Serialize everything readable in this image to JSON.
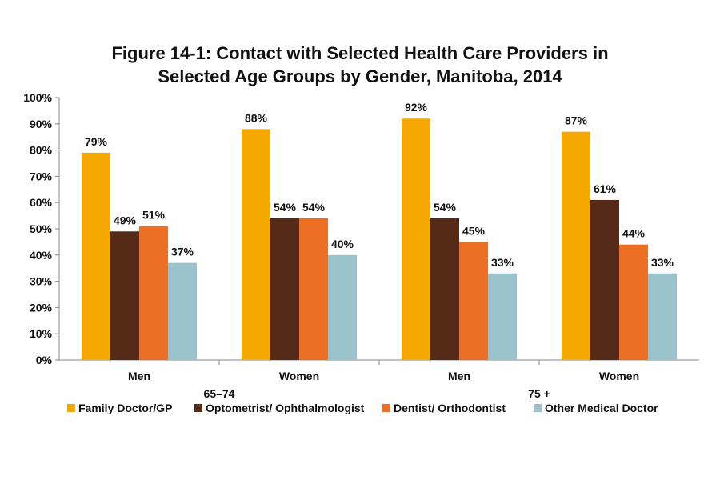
{
  "chart_data": {
    "type": "bar",
    "title": "Figure 14-1: Contact with Selected Health Care Providers in Selected Age Groups by Gender, Manitoba, 2014",
    "title_lines": [
      "Figure 14-1: Contact with Selected Health Care Providers in",
      "Selected Age Groups by Gender, Manitoba, 2014"
    ],
    "categories": [
      "Men",
      "Women",
      "Men",
      "Women"
    ],
    "category_groups": [
      {
        "label": "65–74",
        "categories": [
          0,
          1
        ]
      },
      {
        "label": "75 +",
        "categories": [
          2,
          3
        ]
      }
    ],
    "series": [
      {
        "name": "Family Doctor/GP",
        "color": "#f5a800",
        "values": [
          79,
          88,
          92,
          87
        ]
      },
      {
        "name": "Optometrist/ Ophthalmologist",
        "color": "#552a16",
        "values": [
          49,
          54,
          54,
          61
        ]
      },
      {
        "name": "Dentist/ Orthodontist",
        "color": "#ec6f24",
        "values": [
          51,
          54,
          45,
          44
        ]
      },
      {
        "name": "Other Medical Doctor",
        "color": "#9bc3cc",
        "values": [
          37,
          40,
          33,
          33
        ]
      }
    ],
    "ylim": [
      0,
      100
    ],
    "yticks": [
      "0%",
      "10%",
      "20%",
      "30%",
      "40%",
      "50%",
      "60%",
      "70%",
      "80%",
      "90%",
      "100%"
    ],
    "value_suffix": "%",
    "grid": false,
    "legend": "bottom"
  }
}
